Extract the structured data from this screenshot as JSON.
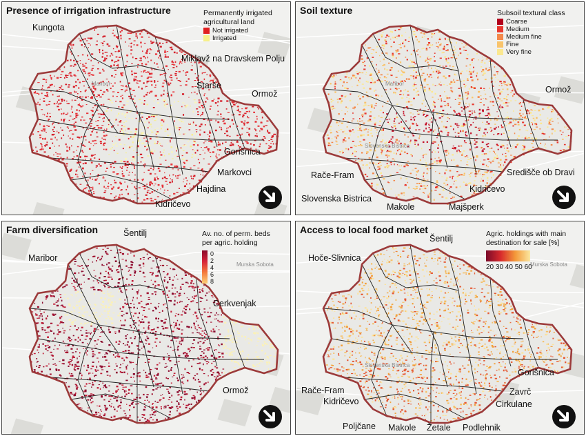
{
  "panels": [
    {
      "title": "Presence of irrigation infrastructure",
      "legend_title": "Permanently irrigated\nagricultural land",
      "legend_items": [
        {
          "label": "Not irrigated",
          "color": "#e02020"
        },
        {
          "label": "Irrigated",
          "color": "#f7f08a"
        }
      ],
      "places": [
        "Kungota",
        "Miklavž na Dravskem Polju",
        "Starše",
        "Ormož",
        "Gorišnica",
        "Markovci",
        "Hajdina",
        "Kidričevo"
      ],
      "bg_towns": [
        "Maribor"
      ],
      "palette": [
        "#d51f2a",
        "#e8343a",
        "#f7ee95",
        "#fbf5b8"
      ]
    },
    {
      "title": "Soil texture",
      "legend_title": "Subsoil textural class",
      "legend_items": [
        {
          "label": "Coarse",
          "color": "#b3001b"
        },
        {
          "label": "Medium",
          "color": "#e8382e"
        },
        {
          "label": "Medium fine",
          "color": "#f4884a"
        },
        {
          "label": "Fine",
          "color": "#f9c46b"
        },
        {
          "label": "Very fine",
          "color": "#fbe890"
        }
      ],
      "places": [
        "Ormož",
        "Rače-Fram",
        "Slovenska Bistrica",
        "Makole",
        "Majšperk",
        "Kidričevo",
        "Središče ob Dravi"
      ],
      "bg_towns": [
        "Maribor",
        "Slovenska Bistrica"
      ],
      "palette": [
        "#c4122a",
        "#e8382e",
        "#f4884a",
        "#f9c46b",
        "#fbe890"
      ]
    },
    {
      "title": "Farm diversification",
      "legend_title": "Av. no. of perm. beds\nper agric. holding",
      "legend_ticks": [
        "0",
        "2",
        "4",
        "6",
        "8"
      ],
      "legend_gradient": [
        "#8a0a2a",
        "#d6243a",
        "#f47a3c",
        "#fcd07a"
      ],
      "places": [
        "Šentilj",
        "Maribor",
        "Cerkvenjak",
        "Ormož"
      ],
      "bg_towns": [
        "Murska Sobota"
      ],
      "palette": [
        "#8b0a2e",
        "#a0102f",
        "#c2203a",
        "#fbf1b7"
      ]
    },
    {
      "title": "Access to local food market",
      "legend_title": "Agric. holdings with main\ndestination for sale [%]",
      "legend_ticks": "20 30 40 50 60",
      "legend_gradient": [
        "#7a0a2a",
        "#d82a2c",
        "#f49a3a",
        "#fbe7a0"
      ],
      "places": [
        "Šentilj",
        "Hoče-Slivnica",
        "Gorišnica",
        "Zavrč",
        "Cirkulane",
        "Rače-Fram",
        "Kidričevo",
        "Poljčane",
        "Makole",
        "Žetale",
        "Podlehnik"
      ],
      "bg_towns": [
        "Murska Sobota",
        "Slovenska Bistrica"
      ],
      "palette": [
        "#f2a13c",
        "#f6c066",
        "#e55a34",
        "#fbe3a0"
      ]
    }
  ]
}
